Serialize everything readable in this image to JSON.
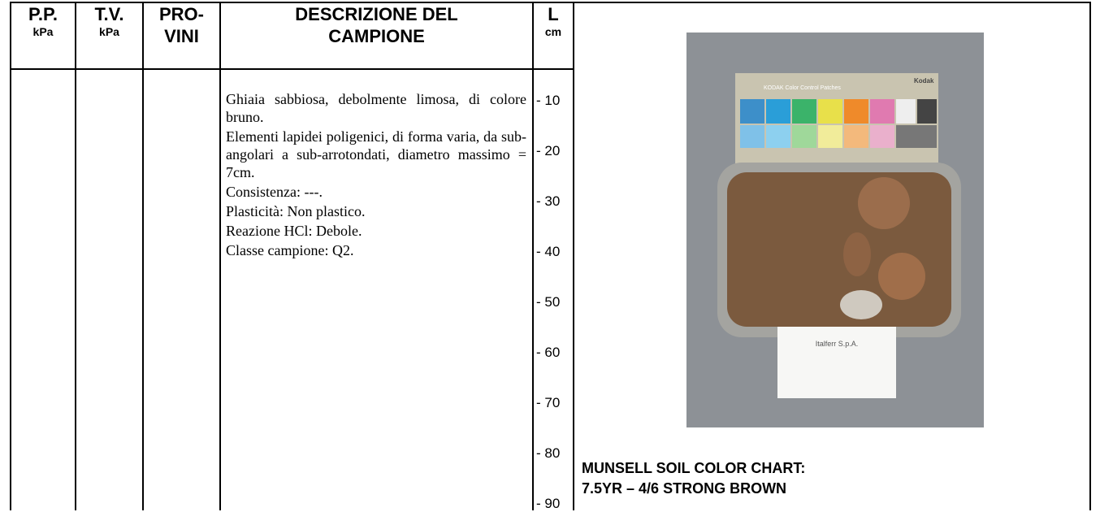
{
  "header": {
    "columns": [
      {
        "title": "P.P.",
        "unit": "kPa"
      },
      {
        "title": "T.V.",
        "unit": "kPa"
      },
      {
        "title": "PRO-",
        "unit": "VINI"
      },
      {
        "title": "DESCRIZIONE DEL",
        "unit": "CAMPIONE"
      },
      {
        "title": "L",
        "unit": "cm"
      }
    ]
  },
  "description": [
    "Ghiaia sabbiosa, debolmente limosa, di colore bruno.",
    "Elementi lapidei poligenici, di forma varia, da sub-angolari a sub-arrotondati, diametro massimo = 7cm.",
    "Consistenza: ---.",
    "Plasticità: Non plastico.",
    "Reazione HCl: Debole.",
    "Classe campione: Q2."
  ],
  "depths": [
    "- 10",
    "- 20",
    "- 30",
    "- 40",
    "- 50",
    "- 60",
    "- 70",
    "- 80",
    "- 90"
  ],
  "photo": {
    "card": "KODAK Color Control Patches",
    "brand": "Kodak",
    "label": "Italferr S.p.A."
  },
  "munsell": [
    "MUNSELL SOIL COLOR CHART:",
    "7.5YR – 4/6 STRONG BROWN"
  ]
}
